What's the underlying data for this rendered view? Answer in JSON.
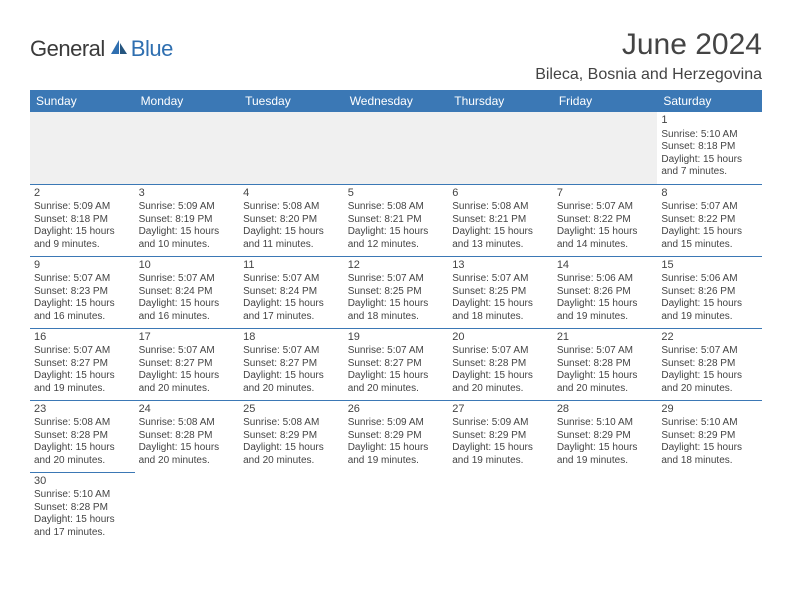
{
  "brand": {
    "part1": "General",
    "part2": "Blue"
  },
  "title": "June 2024",
  "location": "Bileca, Bosnia and Herzegovina",
  "colors": {
    "header_bg": "#3b78b5",
    "header_text": "#ffffff",
    "border": "#3b78b5",
    "body_text": "#444444",
    "empty_bg": "#f0f0f0",
    "page_bg": "#ffffff",
    "logo_gray": "#3a3a3a",
    "logo_blue": "#2f6fb0"
  },
  "day_headers": [
    "Sunday",
    "Monday",
    "Tuesday",
    "Wednesday",
    "Thursday",
    "Friday",
    "Saturday"
  ],
  "weeks": [
    [
      null,
      null,
      null,
      null,
      null,
      null,
      {
        "n": "1",
        "sr": "Sunrise: 5:10 AM",
        "ss": "Sunset: 8:18 PM",
        "dl": "Daylight: 15 hours and 7 minutes."
      }
    ],
    [
      {
        "n": "2",
        "sr": "Sunrise: 5:09 AM",
        "ss": "Sunset: 8:18 PM",
        "dl": "Daylight: 15 hours and 9 minutes."
      },
      {
        "n": "3",
        "sr": "Sunrise: 5:09 AM",
        "ss": "Sunset: 8:19 PM",
        "dl": "Daylight: 15 hours and 10 minutes."
      },
      {
        "n": "4",
        "sr": "Sunrise: 5:08 AM",
        "ss": "Sunset: 8:20 PM",
        "dl": "Daylight: 15 hours and 11 minutes."
      },
      {
        "n": "5",
        "sr": "Sunrise: 5:08 AM",
        "ss": "Sunset: 8:21 PM",
        "dl": "Daylight: 15 hours and 12 minutes."
      },
      {
        "n": "6",
        "sr": "Sunrise: 5:08 AM",
        "ss": "Sunset: 8:21 PM",
        "dl": "Daylight: 15 hours and 13 minutes."
      },
      {
        "n": "7",
        "sr": "Sunrise: 5:07 AM",
        "ss": "Sunset: 8:22 PM",
        "dl": "Daylight: 15 hours and 14 minutes."
      },
      {
        "n": "8",
        "sr": "Sunrise: 5:07 AM",
        "ss": "Sunset: 8:22 PM",
        "dl": "Daylight: 15 hours and 15 minutes."
      }
    ],
    [
      {
        "n": "9",
        "sr": "Sunrise: 5:07 AM",
        "ss": "Sunset: 8:23 PM",
        "dl": "Daylight: 15 hours and 16 minutes."
      },
      {
        "n": "10",
        "sr": "Sunrise: 5:07 AM",
        "ss": "Sunset: 8:24 PM",
        "dl": "Daylight: 15 hours and 16 minutes."
      },
      {
        "n": "11",
        "sr": "Sunrise: 5:07 AM",
        "ss": "Sunset: 8:24 PM",
        "dl": "Daylight: 15 hours and 17 minutes."
      },
      {
        "n": "12",
        "sr": "Sunrise: 5:07 AM",
        "ss": "Sunset: 8:25 PM",
        "dl": "Daylight: 15 hours and 18 minutes."
      },
      {
        "n": "13",
        "sr": "Sunrise: 5:07 AM",
        "ss": "Sunset: 8:25 PM",
        "dl": "Daylight: 15 hours and 18 minutes."
      },
      {
        "n": "14",
        "sr": "Sunrise: 5:06 AM",
        "ss": "Sunset: 8:26 PM",
        "dl": "Daylight: 15 hours and 19 minutes."
      },
      {
        "n": "15",
        "sr": "Sunrise: 5:06 AM",
        "ss": "Sunset: 8:26 PM",
        "dl": "Daylight: 15 hours and 19 minutes."
      }
    ],
    [
      {
        "n": "16",
        "sr": "Sunrise: 5:07 AM",
        "ss": "Sunset: 8:27 PM",
        "dl": "Daylight: 15 hours and 19 minutes."
      },
      {
        "n": "17",
        "sr": "Sunrise: 5:07 AM",
        "ss": "Sunset: 8:27 PM",
        "dl": "Daylight: 15 hours and 20 minutes."
      },
      {
        "n": "18",
        "sr": "Sunrise: 5:07 AM",
        "ss": "Sunset: 8:27 PM",
        "dl": "Daylight: 15 hours and 20 minutes."
      },
      {
        "n": "19",
        "sr": "Sunrise: 5:07 AM",
        "ss": "Sunset: 8:27 PM",
        "dl": "Daylight: 15 hours and 20 minutes."
      },
      {
        "n": "20",
        "sr": "Sunrise: 5:07 AM",
        "ss": "Sunset: 8:28 PM",
        "dl": "Daylight: 15 hours and 20 minutes."
      },
      {
        "n": "21",
        "sr": "Sunrise: 5:07 AM",
        "ss": "Sunset: 8:28 PM",
        "dl": "Daylight: 15 hours and 20 minutes."
      },
      {
        "n": "22",
        "sr": "Sunrise: 5:07 AM",
        "ss": "Sunset: 8:28 PM",
        "dl": "Daylight: 15 hours and 20 minutes."
      }
    ],
    [
      {
        "n": "23",
        "sr": "Sunrise: 5:08 AM",
        "ss": "Sunset: 8:28 PM",
        "dl": "Daylight: 15 hours and 20 minutes."
      },
      {
        "n": "24",
        "sr": "Sunrise: 5:08 AM",
        "ss": "Sunset: 8:28 PM",
        "dl": "Daylight: 15 hours and 20 minutes."
      },
      {
        "n": "25",
        "sr": "Sunrise: 5:08 AM",
        "ss": "Sunset: 8:29 PM",
        "dl": "Daylight: 15 hours and 20 minutes."
      },
      {
        "n": "26",
        "sr": "Sunrise: 5:09 AM",
        "ss": "Sunset: 8:29 PM",
        "dl": "Daylight: 15 hours and 19 minutes."
      },
      {
        "n": "27",
        "sr": "Sunrise: 5:09 AM",
        "ss": "Sunset: 8:29 PM",
        "dl": "Daylight: 15 hours and 19 minutes."
      },
      {
        "n": "28",
        "sr": "Sunrise: 5:10 AM",
        "ss": "Sunset: 8:29 PM",
        "dl": "Daylight: 15 hours and 19 minutes."
      },
      {
        "n": "29",
        "sr": "Sunrise: 5:10 AM",
        "ss": "Sunset: 8:29 PM",
        "dl": "Daylight: 15 hours and 18 minutes."
      }
    ],
    [
      {
        "n": "30",
        "sr": "Sunrise: 5:10 AM",
        "ss": "Sunset: 8:28 PM",
        "dl": "Daylight: 15 hours and 17 minutes."
      },
      null,
      null,
      null,
      null,
      null,
      null
    ]
  ]
}
